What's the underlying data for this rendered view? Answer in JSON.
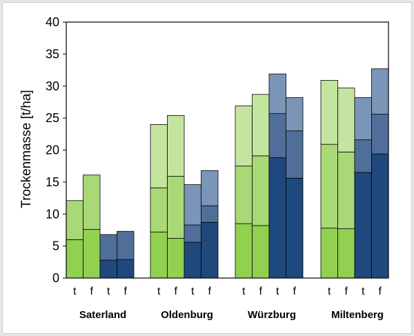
{
  "chart_data": {
    "type": "bar",
    "stacked": true,
    "ylabel": "Trockenmasse [t/ha]",
    "ylim": [
      0,
      40
    ],
    "yticks": [
      0,
      5,
      10,
      15,
      20,
      25,
      30,
      35,
      40
    ],
    "grid": false,
    "groups": [
      {
        "name": "Saterland",
        "bars": [
          {
            "label": "t",
            "palette": "green",
            "segments": [
              6.0,
              6.1
            ]
          },
          {
            "label": "f",
            "palette": "green",
            "segments": [
              7.6,
              8.5
            ]
          },
          {
            "label": "t",
            "palette": "blue",
            "segments": [
              2.8,
              4.0
            ]
          },
          {
            "label": "f",
            "palette": "blue",
            "segments": [
              2.9,
              4.4
            ]
          }
        ]
      },
      {
        "name": "Oldenburg",
        "bars": [
          {
            "label": "t",
            "palette": "green",
            "segments": [
              7.2,
              6.9,
              9.9
            ]
          },
          {
            "label": "f",
            "palette": "green",
            "segments": [
              6.2,
              9.7,
              9.5
            ]
          },
          {
            "label": "t",
            "palette": "blue",
            "segments": [
              5.6,
              2.7,
              6.3
            ]
          },
          {
            "label": "f",
            "palette": "blue",
            "segments": [
              8.7,
              2.6,
              5.5
            ]
          }
        ]
      },
      {
        "name": "Würzburg",
        "bars": [
          {
            "label": "t",
            "palette": "green",
            "segments": [
              8.5,
              9.0,
              9.4
            ]
          },
          {
            "label": "f",
            "palette": "green",
            "segments": [
              8.2,
              10.9,
              9.6
            ]
          },
          {
            "label": "t",
            "palette": "blue",
            "segments": [
              18.8,
              6.9,
              6.2
            ]
          },
          {
            "label": "f",
            "palette": "blue",
            "segments": [
              15.6,
              7.4,
              5.2
            ]
          }
        ]
      },
      {
        "name": "Miltenberg",
        "bars": [
          {
            "label": "t",
            "palette": "green",
            "segments": [
              7.8,
              13.1,
              10.0
            ]
          },
          {
            "label": "f",
            "palette": "green",
            "segments": [
              7.7,
              12.0,
              10.0
            ]
          },
          {
            "label": "t",
            "palette": "blue",
            "segments": [
              16.5,
              5.1,
              6.6
            ]
          },
          {
            "label": "f",
            "palette": "blue",
            "segments": [
              19.4,
              6.2,
              7.1
            ]
          }
        ]
      }
    ],
    "colors": {
      "green": [
        "#92d050",
        "#a9d876",
        "#c4e5a0"
      ],
      "blue": [
        "#1f497d",
        "#4f6f9a",
        "#7a95b8"
      ],
      "border": "#000000"
    }
  }
}
